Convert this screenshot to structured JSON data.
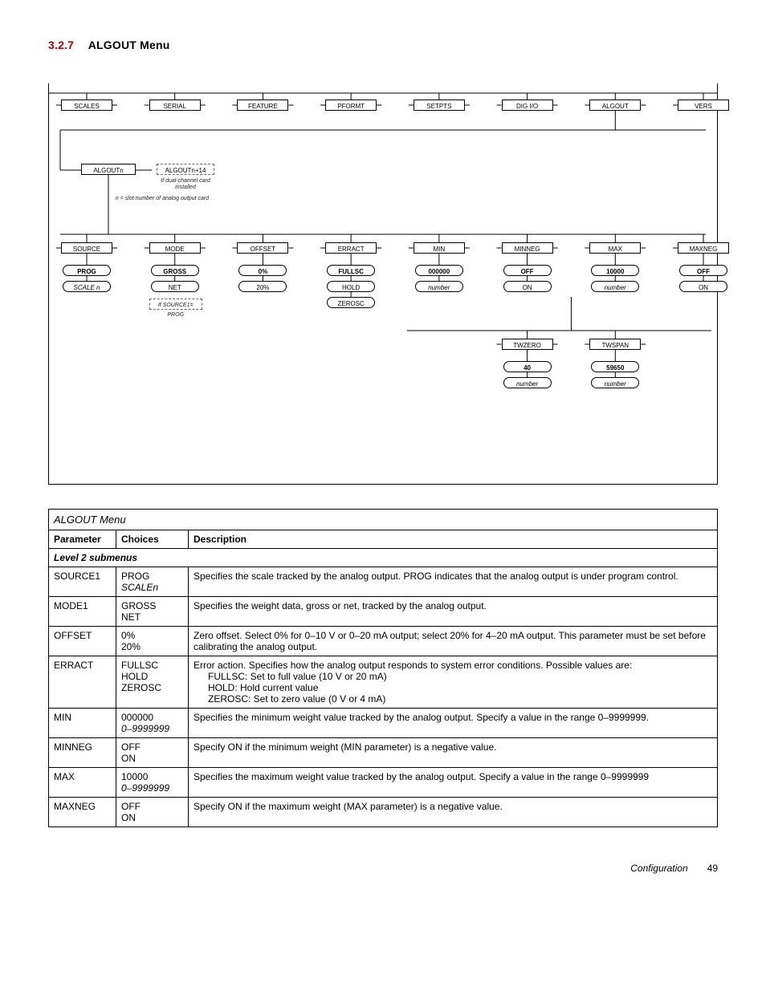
{
  "heading": {
    "number": "3.2.7",
    "title": "ALGOUT Menu"
  },
  "diagram": {
    "top_row": [
      "SCALES",
      "SERIAL",
      "FEATURE",
      "PFORMT",
      "SETPTS",
      "DIG I/O",
      "ALGOUT",
      "VERS"
    ],
    "algoutn": "ALGOUTn",
    "algoutn14": "ALGOUTn+14",
    "note_dual": "If dual-channel card installed",
    "note_slot": "n = slot number of analog output card",
    "row3": [
      "SOURCE",
      "MODE",
      "OFFSET",
      "ERRACT",
      "MIN",
      "MINNEG",
      "MAX",
      "MAXNEG"
    ],
    "row3_opts": [
      [
        "PROG",
        "SCALE n"
      ],
      [
        "GROSS",
        "NET"
      ],
      [
        "0%",
        "20%"
      ],
      [
        "FULLSC",
        "HOLD",
        "ZEROSC"
      ],
      [
        "000000",
        "number"
      ],
      [
        "OFF",
        "ON"
      ],
      [
        "10000",
        "number"
      ],
      [
        "OFF",
        "ON"
      ]
    ],
    "note_src": "If SOURCE1= PROG",
    "twzero": "TWZERO",
    "twspan": "TWSPAN",
    "twzero_vals": [
      "40",
      "number"
    ],
    "twspan_vals": [
      "59650",
      "number"
    ]
  },
  "table": {
    "title": "ALGOUT Menu",
    "headers": [
      "Parameter",
      "Choices",
      "Description"
    ],
    "subhead": "Level 2 submenus",
    "rows": [
      {
        "param": "SOURCE1",
        "choices": [
          "PROG",
          "SCALEn"
        ],
        "choices_italic": [
          false,
          true
        ],
        "desc_lines": [
          "Specifies the scale tracked by the analog output. PROG indicates that the analog output is under program control."
        ]
      },
      {
        "param": "MODE1",
        "choices": [
          "GROSS",
          "NET"
        ],
        "choices_italic": [
          false,
          false
        ],
        "desc_lines": [
          "Specifies the weight data, gross or net, tracked by the analog output."
        ]
      },
      {
        "param": "OFFSET",
        "choices": [
          "0%",
          "20%"
        ],
        "choices_italic": [
          false,
          false
        ],
        "desc_lines": [
          "Zero offset. Select 0% for 0–10 V or 0–20 mA output; select 20% for 4–20 mA output. This parameter must be set before calibrating the analog output."
        ]
      },
      {
        "param": "ERRACT",
        "choices": [
          "FULLSC",
          "HOLD",
          "ZEROSC"
        ],
        "choices_italic": [
          false,
          false,
          false
        ],
        "desc_lines": [
          "Error action. Specifies how the analog output responds to system error conditions. Possible values are:"
        ],
        "desc_indent": [
          "FULLSC: Set to full value (10 V or 20 mA)",
          "HOLD: Hold current value",
          "ZEROSC: Set to zero value (0 V or 4 mA)"
        ]
      },
      {
        "param": "MIN",
        "choices": [
          "000000",
          "0–9999999"
        ],
        "choices_italic": [
          false,
          true
        ],
        "desc_lines": [
          "Specifies the minimum weight value tracked by the analog output. Specify a value in the range 0–9999999."
        ]
      },
      {
        "param": "MINNEG",
        "choices": [
          "OFF",
          "ON"
        ],
        "choices_italic": [
          false,
          false
        ],
        "desc_lines": [
          "Specify ON if the minimum weight (MIN parameter) is a negative value."
        ]
      },
      {
        "param": "MAX",
        "choices": [
          "10000",
          "0–9999999"
        ],
        "choices_italic": [
          false,
          true
        ],
        "desc_lines": [
          "Specifies the maximum weight value tracked by the analog output. Specify a value in the range 0–9999999"
        ]
      },
      {
        "param": "MAXNEG",
        "choices": [
          "OFF",
          "ON"
        ],
        "choices_italic": [
          false,
          false
        ],
        "desc_lines": [
          "Specify ON if the maximum weight (MAX parameter) is a negative value."
        ]
      }
    ]
  },
  "footer": {
    "label": "Configuration",
    "page": "49"
  }
}
